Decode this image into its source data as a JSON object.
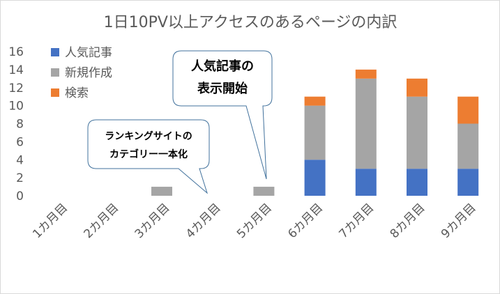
{
  "chart_data": {
    "type": "bar",
    "stacked": true,
    "title": "1日10PV以上アクセスのあるページの内訳",
    "categories": [
      "1カ月目",
      "2カ月目",
      "3カ月目",
      "4カ月目",
      "5カ月目",
      "6カ月目",
      "7カ月目",
      "8カ月目",
      "9カ月目"
    ],
    "series": [
      {
        "name": "人気記事",
        "color": "#4472c4",
        "values": [
          0,
          0,
          0,
          0,
          0,
          4,
          3,
          3,
          3
        ]
      },
      {
        "name": "新規作成",
        "color": "#a5a5a5",
        "values": [
          0,
          0,
          1,
          0,
          1,
          6,
          10,
          8,
          5
        ]
      },
      {
        "name": "検索",
        "color": "#ed7d31",
        "values": [
          0,
          0,
          0,
          0,
          0,
          1,
          1,
          2,
          3
        ]
      }
    ],
    "ylim": [
      0,
      16
    ],
    "yticks": [
      0,
      2,
      4,
      6,
      8,
      10,
      12,
      14,
      16
    ],
    "grid": false,
    "legend": "top-left",
    "annotations": [
      {
        "id": "ranking",
        "lines": [
          "ランキングサイトの",
          "カテゴリー一本化"
        ],
        "points_to": "4カ月目"
      },
      {
        "id": "popular",
        "lines": [
          "人気記事の",
          "表示開始"
        ],
        "points_to": "5カ月目"
      }
    ]
  }
}
